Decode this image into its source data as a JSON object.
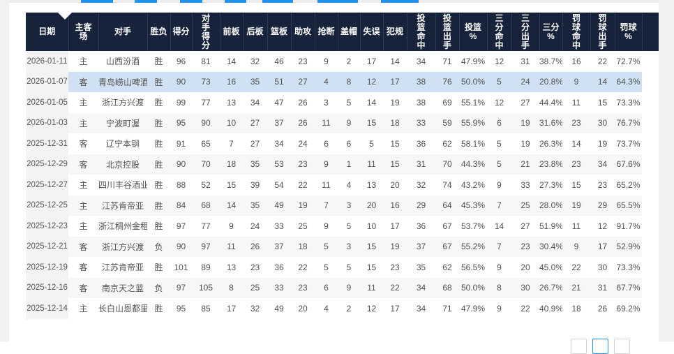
{
  "colors": {
    "header_bg": "#16233a",
    "accent_blue": "#2492ef",
    "highlight_row": "#cfe1f2",
    "alt_row": "#f7f7f8",
    "date_col_bg": "#f3f3f4",
    "body_text": "#515151",
    "header_text": "#ffffff"
  },
  "table": {
    "columns": [
      "日期",
      "主客\n场",
      "对手",
      "胜负",
      "得分",
      "对\n手\n得\n分",
      "前板",
      "后板",
      "篮板",
      "助攻",
      "抢断",
      "盖帽",
      "失误",
      "犯规",
      "投\n篮\n命\n中",
      "投\n篮\n出\n手",
      "投篮\n%",
      "三\n分\n命\n中",
      "三\n分\n出\n手",
      "三分\n%",
      "罚\n球\n命\n中",
      "罚\n球\n出\n手",
      "罚球\n%"
    ],
    "highlighted_row_index": 1,
    "rows": [
      [
        "2026-01-11",
        "主",
        "山西汾酒",
        "胜",
        "96",
        "81",
        "14",
        "32",
        "46",
        "23",
        "9",
        "2",
        "17",
        "14",
        "34",
        "71",
        "47.9%",
        "12",
        "31",
        "38.7%",
        "16",
        "22",
        "72.7%"
      ],
      [
        "2026-01-07",
        "客",
        "青岛崂山啤酒",
        "胜",
        "90",
        "73",
        "16",
        "35",
        "51",
        "27",
        "4",
        "8",
        "12",
        "17",
        "38",
        "76",
        "50.0%",
        "5",
        "24",
        "20.8%",
        "9",
        "14",
        "64.3%"
      ],
      [
        "2026-01-05",
        "主",
        "浙江方兴渡",
        "胜",
        "99",
        "77",
        "13",
        "34",
        "47",
        "26",
        "3",
        "5",
        "14",
        "19",
        "38",
        "69",
        "55.1%",
        "12",
        "27",
        "44.4%",
        "11",
        "15",
        "73.3%"
      ],
      [
        "2026-01-03",
        "主",
        "宁波町渥",
        "胜",
        "95",
        "90",
        "10",
        "27",
        "37",
        "26",
        "11",
        "9",
        "15",
        "18",
        "33",
        "59",
        "55.9%",
        "6",
        "19",
        "31.6%",
        "23",
        "30",
        "76.7%"
      ],
      [
        "2025-12-31",
        "客",
        "辽宁本钢",
        "胜",
        "91",
        "65",
        "7",
        "27",
        "34",
        "24",
        "6",
        "6",
        "5",
        "15",
        "36",
        "62",
        "58.1%",
        "5",
        "19",
        "26.3%",
        "14",
        "19",
        "73.7%"
      ],
      [
        "2025-12-29",
        "客",
        "北京控股",
        "胜",
        "90",
        "70",
        "18",
        "35",
        "53",
        "23",
        "9",
        "1",
        "11",
        "15",
        "31",
        "70",
        "44.3%",
        "5",
        "21",
        "23.8%",
        "23",
        "34",
        "67.6%"
      ],
      [
        "2025-12-27",
        "主",
        "四川丰谷酒业",
        "胜",
        "88",
        "52",
        "15",
        "39",
        "54",
        "22",
        "11",
        "4",
        "13",
        "20",
        "32",
        "74",
        "43.2%",
        "9",
        "33",
        "27.3%",
        "15",
        "23",
        "65.2%"
      ],
      [
        "2025-12-25",
        "主",
        "江苏肯帝亚",
        "胜",
        "84",
        "68",
        "14",
        "35",
        "49",
        "19",
        "7",
        "3",
        "20",
        "16",
        "29",
        "64",
        "45.3%",
        "7",
        "25",
        "28.0%",
        "19",
        "29",
        "65.5%"
      ],
      [
        "2025-12-23",
        "主",
        "浙江稠州金租",
        "胜",
        "97",
        "77",
        "9",
        "24",
        "33",
        "25",
        "9",
        "5",
        "10",
        "17",
        "36",
        "67",
        "53.7%",
        "14",
        "27",
        "51.9%",
        "11",
        "12",
        "91.7%"
      ],
      [
        "2025-12-21",
        "客",
        "浙江方兴渡",
        "负",
        "90",
        "97",
        "11",
        "26",
        "37",
        "18",
        "5",
        "3",
        "15",
        "19",
        "37",
        "67",
        "55.2%",
        "7",
        "23",
        "30.4%",
        "9",
        "17",
        "52.9%"
      ],
      [
        "2025-12-19",
        "客",
        "江苏肯帝亚",
        "胜",
        "101",
        "89",
        "13",
        "23",
        "36",
        "22",
        "5",
        "5",
        "15",
        "23",
        "35",
        "62",
        "56.5%",
        "9",
        "20",
        "45.0%",
        "22",
        "30",
        "73.3%"
      ],
      [
        "2025-12-16",
        "客",
        "南京天之蓝",
        "负",
        "97",
        "105",
        "8",
        "25",
        "33",
        "23",
        "6",
        "9",
        "11",
        "22",
        "34",
        "68",
        "50.0%",
        "8",
        "30",
        "26.7%",
        "21",
        "31",
        "67.7%"
      ],
      [
        "2025-12-14",
        "主",
        "长白山恩都里",
        "胜",
        "95",
        "85",
        "17",
        "32",
        "49",
        "20",
        "4",
        "2",
        "12",
        "17",
        "34",
        "71",
        "47.9%",
        "9",
        "22",
        "40.9%",
        "18",
        "26",
        "69.2%"
      ]
    ]
  },
  "pagination": {
    "buttons": [
      {
        "active": false
      },
      {
        "active": true
      },
      {
        "active": false
      }
    ]
  }
}
